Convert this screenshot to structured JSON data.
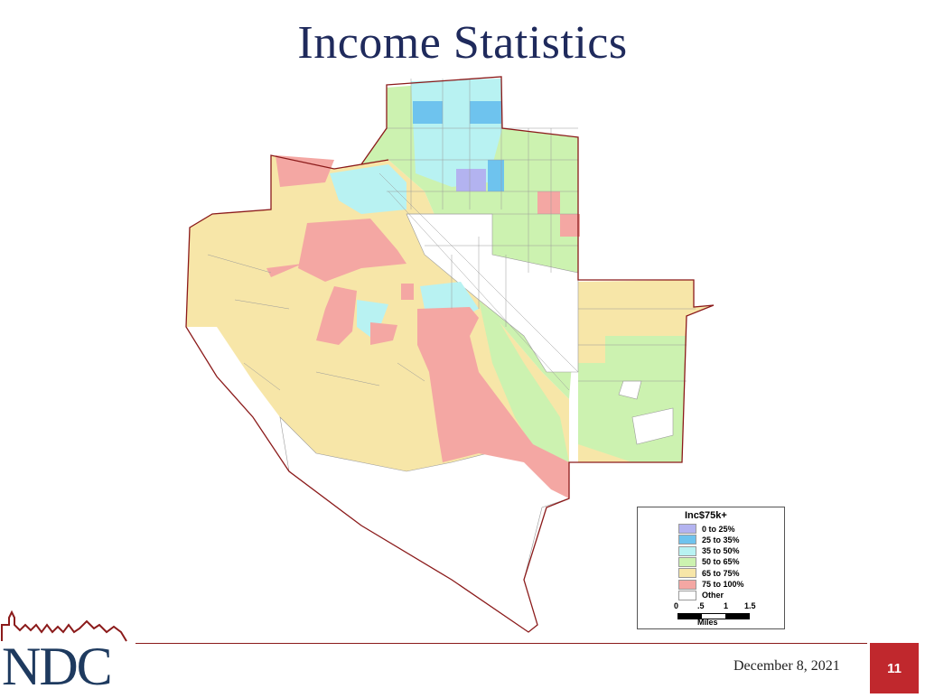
{
  "slide": {
    "title": "Income Statistics",
    "date": "December 8, 2021",
    "page_number": "11"
  },
  "logo": {
    "text": "NDC",
    "colors": {
      "text": "#1e3a5f",
      "skyline": "#8b1a1a"
    }
  },
  "legend": {
    "title": "Inc$75k+",
    "items": [
      {
        "label": "0 to 25%",
        "color": "#b3b3f0"
      },
      {
        "label": "25 to 35%",
        "color": "#6ec3ee"
      },
      {
        "label": "35 to 50%",
        "color": "#b8f2f2"
      },
      {
        "label": "50 to 65%",
        "color": "#ccf2b0"
      },
      {
        "label": "65 to 75%",
        "color": "#f7e6a8"
      },
      {
        "label": "75 to 100%",
        "color": "#f4a7a3"
      },
      {
        "label": "Other",
        "color": "#ffffff"
      }
    ],
    "scale": {
      "ticks": [
        "0",
        ".5",
        "1",
        "1.5"
      ],
      "unit": "Miles"
    }
  },
  "map": {
    "boundary_color": "#8b1a1a"
  }
}
